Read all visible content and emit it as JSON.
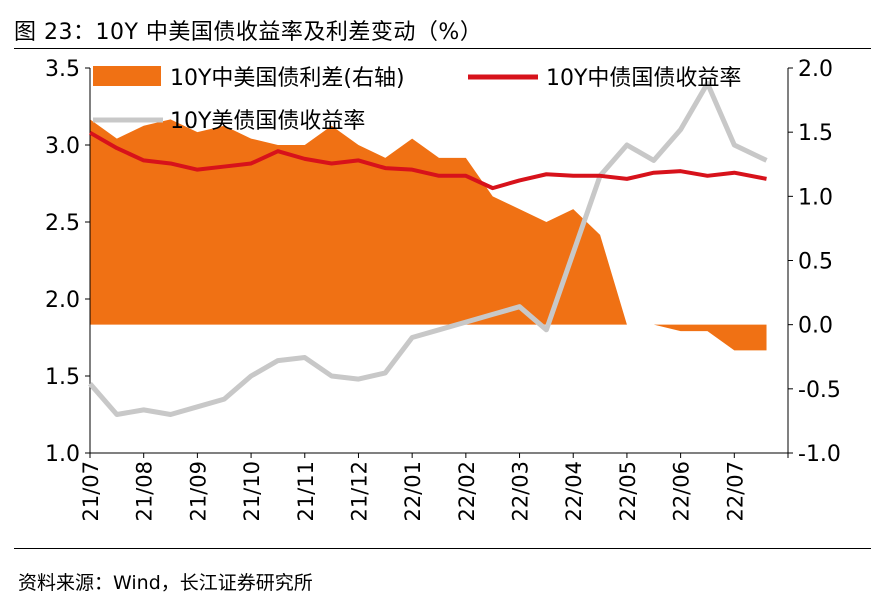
{
  "figure": {
    "title": "图 23：10Y 中美国债收益率及利差变动（%）",
    "source": "资料来源：Wind，长江证券研究所"
  },
  "colors": {
    "spread": "#f07114",
    "cn_yield": "#d7121b",
    "us_yield": "#c8c8c8",
    "axis": "#000000"
  },
  "chart_data": {
    "type": "line",
    "x_labels": [
      "21/07",
      "21/08",
      "21/09",
      "21/10",
      "21/11",
      "21/12",
      "22/01",
      "22/02",
      "22/03",
      "22/04",
      "22/05",
      "22/06",
      "22/07"
    ],
    "x": [
      0,
      0.5,
      1,
      1.5,
      2,
      2.5,
      3,
      3.5,
      4,
      4.5,
      5,
      5.5,
      6,
      6.5,
      7,
      7.5,
      8,
      8.5,
      9,
      9.5,
      10,
      10.5,
      11,
      11.5,
      12,
      12.6
    ],
    "left_axis": {
      "label": "",
      "ylim": [
        1.0,
        3.5
      ],
      "ticks": [
        "1.0",
        "1.5",
        "2.0",
        "2.5",
        "3.0",
        "3.5"
      ]
    },
    "right_axis": {
      "label": "",
      "ylim": [
        -1.0,
        2.0
      ],
      "ticks": [
        "-1.0",
        "-0.5",
        "0.0",
        "0.5",
        "1.0",
        "1.5",
        "2.0"
      ]
    },
    "legend": [
      "10Y中美国债利差(右轴)",
      "10Y中债国债收益率",
      "10Y美债国债收益率"
    ],
    "series": [
      {
        "name": "10Y中美国债利差(右轴)",
        "type": "area",
        "axis": "right",
        "values": [
          1.6,
          1.45,
          1.55,
          1.6,
          1.5,
          1.55,
          1.45,
          1.4,
          1.4,
          1.55,
          1.4,
          1.3,
          1.45,
          1.3,
          1.3,
          1.0,
          0.9,
          0.8,
          0.9,
          0.7,
          0.0,
          0.0,
          -0.05,
          -0.05,
          -0.2,
          -0.2
        ]
      },
      {
        "name": "10Y中债国债收益率",
        "type": "line",
        "axis": "left",
        "values": [
          3.08,
          2.98,
          2.9,
          2.88,
          2.84,
          2.86,
          2.88,
          2.96,
          2.91,
          2.88,
          2.9,
          2.85,
          2.84,
          2.8,
          2.8,
          2.72,
          2.77,
          2.81,
          2.8,
          2.8,
          2.78,
          2.82,
          2.83,
          2.8,
          2.82,
          2.78
        ]
      },
      {
        "name": "10Y美债国债收益率",
        "type": "line",
        "axis": "left",
        "values": [
          1.45,
          1.25,
          1.28,
          1.25,
          1.3,
          1.35,
          1.5,
          1.6,
          1.62,
          1.5,
          1.48,
          1.52,
          1.75,
          1.8,
          1.85,
          1.9,
          1.95,
          1.8,
          2.3,
          2.8,
          3.0,
          2.9,
          3.1,
          3.4,
          3.0,
          2.9
        ]
      }
    ]
  }
}
